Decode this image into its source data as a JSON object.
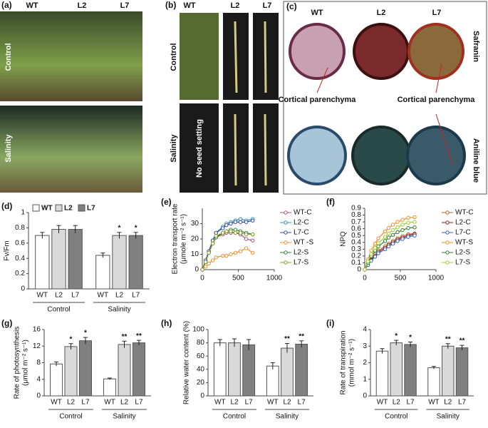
{
  "photo_panels": {
    "a": {
      "panel_label": "(a)",
      "columns": [
        "WT",
        "L2",
        "L7"
      ],
      "rows": [
        "Control",
        "Salinity"
      ]
    },
    "b": {
      "panel_label": "(b)",
      "columns": [
        "WT",
        "L2",
        "L7"
      ],
      "rows": [
        "Control",
        "Salinity"
      ],
      "note": "No seed setting"
    },
    "c": {
      "panel_label": "(c)",
      "columns": [
        "WT",
        "L2",
        "L7"
      ],
      "stains": [
        "Safranin",
        "Aniline blue"
      ],
      "annotations": [
        "Cortical parenchyma",
        "Cortical parenchyma"
      ]
    }
  },
  "chart_data": [
    {
      "type": "bar",
      "panel_label": "(d)",
      "ylabel": "Fv/Fm",
      "categories": [
        "Control",
        "Salinity"
      ],
      "ylim": [
        0,
        1
      ],
      "yticks": [
        0,
        0.2,
        0.4,
        0.6,
        0.8,
        1
      ],
      "legend": "top",
      "series": [
        {
          "name": "WT",
          "color": "#ffffff",
          "values": [
            0.7,
            0.44
          ],
          "errors": [
            0.04,
            0.03
          ],
          "annotations": [
            null,
            null
          ]
        },
        {
          "name": "L2",
          "color": "#d9d9d9",
          "values": [
            0.78,
            0.7
          ],
          "errors": [
            0.05,
            0.04
          ],
          "annotations": [
            null,
            "*"
          ]
        },
        {
          "name": "L7",
          "color": "#808080",
          "values": [
            0.78,
            0.7
          ],
          "errors": [
            0.05,
            0.04
          ],
          "annotations": [
            null,
            "*"
          ]
        }
      ]
    },
    {
      "type": "line",
      "panel_label": "(e)",
      "ylabel": [
        "Electron transport  rate",
        "(μmole m⁻² s⁻¹)"
      ],
      "x": [
        0,
        45,
        90,
        145,
        190,
        285,
        335,
        395,
        460,
        530,
        610,
        700
      ],
      "xlim": [
        0,
        1000
      ],
      "xticks": [
        0,
        500,
        1000
      ],
      "ylim": [
        0,
        40
      ],
      "yticks": [
        0,
        10,
        20,
        30
      ],
      "legend": "right",
      "series": [
        {
          "name": "WT-C",
          "color": "#a0527a",
          "values": [
            0,
            5,
            11,
            17,
            21,
            23,
            24,
            24,
            24,
            23,
            20,
            19
          ]
        },
        {
          "name": "L2-C",
          "color": "#2e8bc0",
          "values": [
            0,
            6,
            12,
            19,
            24,
            28,
            30,
            31,
            32,
            33,
            32,
            33
          ]
        },
        {
          "name": "L7-C",
          "color": "#3b4aa0",
          "values": [
            0,
            6,
            12,
            19,
            24,
            27,
            29,
            30,
            31,
            31,
            31,
            32
          ]
        },
        {
          "name": "WT -S",
          "color": "#f28c28",
          "values": [
            0,
            2,
            4,
            6,
            8,
            9,
            9,
            10,
            11,
            12,
            14,
            11
          ]
        },
        {
          "name": "L2-S",
          "color": "#2e7d32",
          "values": [
            0,
            5,
            11,
            17,
            21,
            24,
            25,
            26,
            26,
            25,
            24,
            23
          ]
        },
        {
          "name": "L7-S",
          "color": "#8a9a2a",
          "values": [
            0,
            5,
            11,
            17,
            22,
            24,
            25,
            25,
            24,
            24,
            23,
            23
          ]
        }
      ]
    },
    {
      "type": "line",
      "panel_label": "(f)",
      "ylabel": "NPQ",
      "x": [
        0,
        45,
        90,
        145,
        190,
        285,
        335,
        395,
        460,
        530,
        610,
        700
      ],
      "xlim": [
        0,
        1000
      ],
      "xticks": [
        0,
        500,
        1000
      ],
      "ylim": [
        0,
        0.9
      ],
      "yticks": [
        0,
        0.1,
        0.2,
        0.3,
        0.4,
        0.5,
        0.6,
        0.7,
        0.8,
        0.9
      ],
      "legend": "right",
      "series": [
        {
          "name": "WT-C",
          "color": "#b5651d",
          "values": [
            0,
            0.08,
            0.15,
            0.22,
            0.28,
            0.34,
            0.38,
            0.42,
            0.46,
            0.49,
            0.52,
            0.53
          ]
        },
        {
          "name": "L2-C",
          "color": "#8b1a1a",
          "values": [
            0,
            0.07,
            0.14,
            0.2,
            0.26,
            0.32,
            0.36,
            0.4,
            0.44,
            0.47,
            0.5,
            0.52
          ]
        },
        {
          "name": "L7-C",
          "color": "#2f5fb3",
          "values": [
            0,
            0.07,
            0.13,
            0.19,
            0.24,
            0.3,
            0.34,
            0.38,
            0.42,
            0.45,
            0.48,
            0.5
          ]
        },
        {
          "name": "WT-S",
          "color": "#f28c28",
          "values": [
            0,
            0.15,
            0.28,
            0.38,
            0.46,
            0.56,
            0.61,
            0.66,
            0.7,
            0.73,
            0.76,
            0.77
          ]
        },
        {
          "name": "L2-S",
          "color": "#2e7d32",
          "values": [
            0,
            0.1,
            0.2,
            0.28,
            0.34,
            0.42,
            0.47,
            0.51,
            0.55,
            0.58,
            0.61,
            0.62
          ]
        },
        {
          "name": "L7-S",
          "color": "#9acd32",
          "values": [
            0,
            0.12,
            0.23,
            0.32,
            0.39,
            0.48,
            0.53,
            0.58,
            0.62,
            0.66,
            0.69,
            0.7
          ]
        }
      ]
    },
    {
      "type": "bar",
      "panel_label": "(g)",
      "ylabel": [
        "Rate of photosynthesis",
        "(μmol m⁻² s⁻¹)"
      ],
      "categories": [
        "Control",
        "Salinity"
      ],
      "ylim": [
        0,
        16
      ],
      "yticks": [
        0,
        4,
        8,
        12,
        16
      ],
      "series": [
        {
          "name": "WT",
          "color": "#ffffff",
          "values": [
            7.7,
            4.1
          ],
          "errors": [
            0.5,
            0.2
          ],
          "annotations": [
            null,
            null
          ]
        },
        {
          "name": "L2",
          "color": "#d9d9d9",
          "values": [
            11.9,
            12.4
          ],
          "errors": [
            0.7,
            0.8
          ],
          "annotations": [
            "*",
            "**"
          ]
        },
        {
          "name": "L7",
          "color": "#808080",
          "values": [
            13.3,
            12.8
          ],
          "errors": [
            0.8,
            0.6
          ],
          "annotations": [
            "*",
            "**"
          ]
        }
      ]
    },
    {
      "type": "bar",
      "panel_label": "(h)",
      "ylabel": "Relative water content (%)",
      "categories": [
        "Control",
        "Salinity"
      ],
      "ylim": [
        0,
        100
      ],
      "yticks": [
        0,
        20,
        40,
        60,
        80,
        100
      ],
      "series": [
        {
          "name": "WT",
          "color": "#ffffff",
          "values": [
            80,
            45
          ],
          "errors": [
            5,
            5
          ],
          "annotations": [
            null,
            null
          ]
        },
        {
          "name": "L2",
          "color": "#d9d9d9",
          "values": [
            80,
            72
          ],
          "errors": [
            6,
            7
          ],
          "annotations": [
            null,
            "**"
          ]
        },
        {
          "name": "L7",
          "color": "#808080",
          "values": [
            77,
            78
          ],
          "errors": [
            8,
            5
          ],
          "annotations": [
            null,
            "**"
          ]
        }
      ]
    },
    {
      "type": "bar",
      "panel_label": "(i)",
      "ylabel": [
        "Rate of transpiration",
        "(mmol m⁻² s⁻¹)"
      ],
      "categories": [
        "Control",
        "Salinity"
      ],
      "ylim": [
        0,
        4
      ],
      "yticks": [
        0,
        1,
        2,
        3,
        4
      ],
      "series": [
        {
          "name": "WT",
          "color": "#ffffff",
          "values": [
            2.7,
            1.7
          ],
          "errors": [
            0.15,
            0.08
          ],
          "annotations": [
            null,
            null
          ]
        },
        {
          "name": "L2",
          "color": "#d9d9d9",
          "values": [
            3.2,
            3.0
          ],
          "errors": [
            0.15,
            0.15
          ],
          "annotations": [
            "*",
            "**"
          ]
        },
        {
          "name": "L7",
          "color": "#808080",
          "values": [
            3.1,
            2.9
          ],
          "errors": [
            0.15,
            0.15
          ],
          "annotations": [
            "*",
            "**"
          ]
        }
      ]
    }
  ]
}
